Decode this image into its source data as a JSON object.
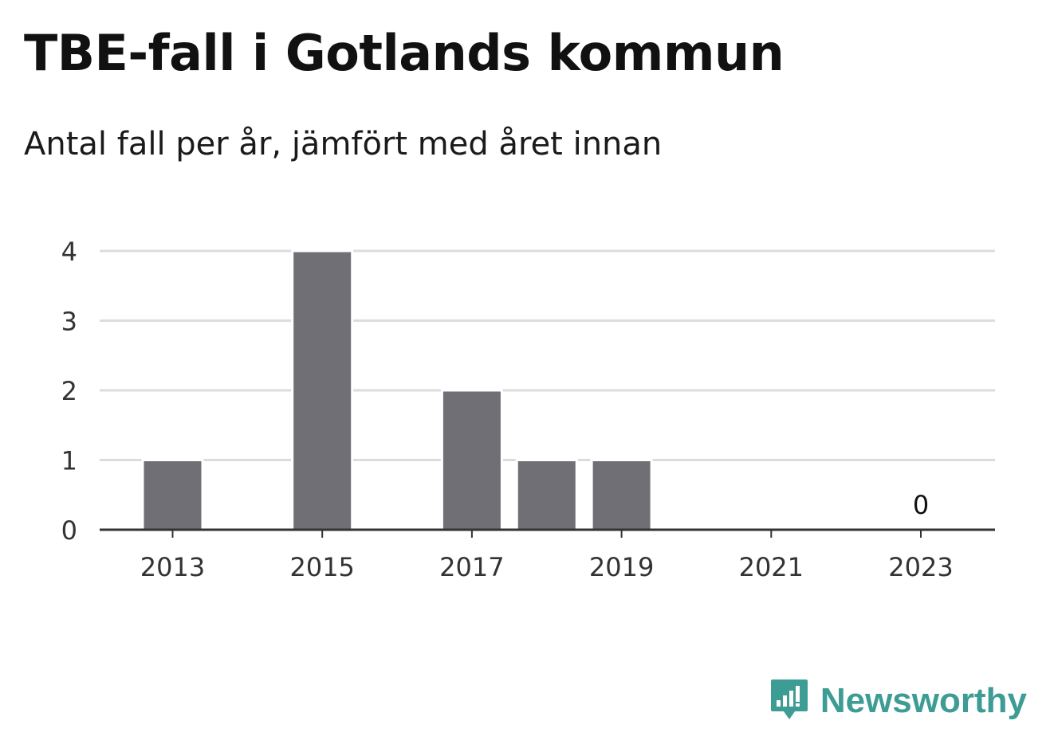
{
  "title": "TBE-fall i Gotlands kommun",
  "subtitle": "Antal fall per år, jämfört med året innan",
  "colors": {
    "bar": "#706f75",
    "grid": "#dcdcdc",
    "axis": "#333333",
    "brand": "#3d9c93"
  },
  "chart_data": {
    "type": "bar",
    "categories": [
      "2013",
      "2014",
      "2015",
      "2016",
      "2017",
      "2018",
      "2019",
      "2020",
      "2021",
      "2022",
      "2023"
    ],
    "values": [
      1,
      0,
      4,
      0,
      2,
      1,
      1,
      0,
      0,
      0,
      0
    ],
    "x_tick_labels": [
      "2013",
      "2015",
      "2017",
      "2019",
      "2021",
      "2023"
    ],
    "y_ticks": [
      0,
      1,
      2,
      3,
      4
    ],
    "ylim": [
      0,
      4
    ],
    "grid": true,
    "data_labels": [
      {
        "category": "2023",
        "text": "0"
      }
    ]
  },
  "brand": {
    "name": "Newsworthy",
    "icon": "newsworthy-logo-icon"
  }
}
